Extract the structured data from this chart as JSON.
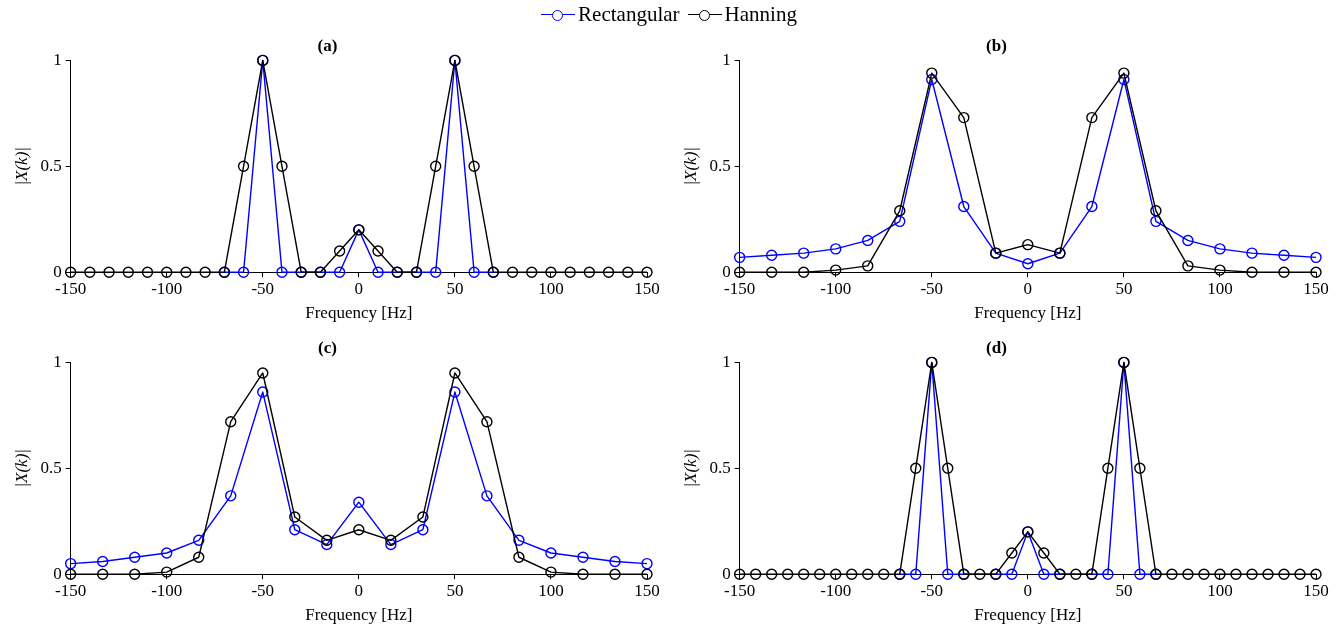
{
  "chart_data": [
    {
      "type": "line",
      "title": "(a)",
      "xlabel": "Frequency [Hz]",
      "ylabel": "|X(k)|",
      "xlim": [
        -150,
        150
      ],
      "xticks": [
        -150,
        -100,
        -50,
        0,
        50,
        100,
        150
      ],
      "ylim": [
        0,
        1
      ],
      "yticks": [
        0,
        0.5,
        1
      ],
      "marker": "circle",
      "legend": "top",
      "grid": false,
      "x": [
        -150,
        -140,
        -130,
        -120,
        -110,
        -100,
        -90,
        -80,
        -70,
        -60,
        -50,
        -40,
        -30,
        -20,
        -10,
        0,
        10,
        20,
        30,
        40,
        50,
        60,
        70,
        80,
        90,
        100,
        110,
        120,
        130,
        140,
        150
      ],
      "series": [
        {
          "name": "Rectangular",
          "color": "#0000ff",
          "values": [
            null,
            null,
            null,
            null,
            null,
            null,
            null,
            null,
            0,
            0,
            1,
            0,
            0,
            0,
            0,
            0.2,
            0,
            0,
            0,
            0,
            1,
            0,
            0,
            null,
            null,
            null,
            null,
            null,
            null,
            null,
            null
          ]
        },
        {
          "name": "Hanning",
          "color": "#000000",
          "values": [
            0,
            0,
            0,
            0,
            0,
            0,
            0,
            0,
            0,
            0.5,
            1,
            0.5,
            0,
            0,
            0.1,
            0.2,
            0.1,
            0,
            0,
            0.5,
            1,
            0.5,
            0,
            0,
            0,
            0,
            0,
            0,
            0,
            0,
            0
          ]
        }
      ]
    },
    {
      "type": "line",
      "title": "(b)",
      "xlabel": "Frequency [Hz]",
      "ylabel": "|X(k)|",
      "xlim": [
        -150,
        150
      ],
      "xticks": [
        -150,
        -100,
        -50,
        0,
        50,
        100,
        150
      ],
      "ylim": [
        0,
        1
      ],
      "yticks": [
        0,
        0.5,
        1
      ],
      "marker": "circle",
      "grid": false,
      "x": [
        -150,
        -133.33,
        -116.67,
        -100,
        -83.33,
        -66.67,
        -50,
        -33.33,
        -16.67,
        0,
        16.67,
        33.33,
        50,
        66.67,
        83.33,
        100,
        116.67,
        133.33,
        150
      ],
      "series": [
        {
          "color": "#0000ff",
          "values": [
            0.07,
            0.08,
            0.09,
            0.11,
            0.15,
            0.24,
            0.91,
            0.31,
            0.09,
            0.04,
            0.09,
            0.31,
            0.91,
            0.24,
            0.15,
            0.11,
            0.09,
            0.08,
            0.07
          ]
        },
        {
          "color": "#000000",
          "values": [
            0,
            0,
            0,
            0.01,
            0.03,
            0.29,
            0.94,
            0.73,
            0.09,
            0.13,
            0.09,
            0.73,
            0.94,
            0.29,
            0.03,
            0.01,
            0,
            0,
            0
          ]
        }
      ]
    },
    {
      "type": "line",
      "title": "(c)",
      "xlabel": "Frequency [Hz]",
      "ylabel": "|X(k)|",
      "xlim": [
        -150,
        150
      ],
      "xticks": [
        -150,
        -100,
        -50,
        0,
        50,
        100,
        150
      ],
      "ylim": [
        0,
        1
      ],
      "yticks": [
        0,
        0.5,
        1
      ],
      "marker": "circle",
      "grid": false,
      "x": [
        -150,
        -133.33,
        -116.67,
        -100,
        -83.33,
        -66.67,
        -50,
        -33.33,
        -16.67,
        0,
        16.67,
        33.33,
        50,
        66.67,
        83.33,
        100,
        116.67,
        133.33,
        150
      ],
      "series": [
        {
          "color": "#0000ff",
          "values": [
            0.05,
            0.06,
            0.08,
            0.1,
            0.16,
            0.37,
            0.86,
            0.21,
            0.14,
            0.34,
            0.14,
            0.21,
            0.86,
            0.37,
            0.16,
            0.1,
            0.08,
            0.06,
            0.05
          ]
        },
        {
          "color": "#000000",
          "values": [
            0,
            0,
            0,
            0.01,
            0.08,
            0.72,
            0.95,
            0.27,
            0.16,
            0.21,
            0.16,
            0.27,
            0.95,
            0.72,
            0.08,
            0.01,
            0,
            0,
            0
          ]
        }
      ]
    },
    {
      "type": "line",
      "title": "(d)",
      "xlabel": "Frequency [Hz]",
      "ylabel": "|X(k)|",
      "xlim": [
        -150,
        150
      ],
      "xticks": [
        -150,
        -100,
        -50,
        0,
        50,
        100,
        150
      ],
      "ylim": [
        0,
        1
      ],
      "yticks": [
        0,
        0.5,
        1
      ],
      "marker": "circle",
      "grid": false,
      "x": [
        -150,
        -141.67,
        -133.33,
        -125,
        -116.67,
        -108.33,
        -100,
        -91.67,
        -83.33,
        -75,
        -66.67,
        -58.33,
        -50,
        -41.67,
        -33.33,
        -25,
        -16.67,
        -8.33,
        0,
        8.33,
        16.67,
        25,
        33.33,
        41.67,
        50,
        58.33,
        66.67,
        75,
        83.33,
        91.67,
        100,
        108.33,
        116.67,
        125,
        133.33,
        141.67,
        150
      ],
      "series": [
        {
          "color": "#0000ff",
          "values": [
            null,
            null,
            null,
            null,
            null,
            null,
            null,
            null,
            null,
            null,
            0,
            0,
            1,
            0,
            0,
            null,
            0,
            0,
            0.2,
            0,
            0,
            null,
            0,
            0,
            1,
            0,
            0,
            null,
            null,
            null,
            null,
            null,
            null,
            null,
            null,
            null,
            null
          ]
        },
        {
          "color": "#000000",
          "values": [
            0,
            0,
            0,
            0,
            0,
            0,
            0,
            0,
            0,
            0,
            0,
            0.5,
            1,
            0.5,
            0,
            0,
            0,
            0.1,
            0.2,
            0.1,
            0,
            0,
            0,
            0.5,
            1,
            0.5,
            0,
            0,
            0,
            0,
            0,
            0,
            0,
            0,
            0,
            0,
            0
          ]
        }
      ]
    }
  ]
}
